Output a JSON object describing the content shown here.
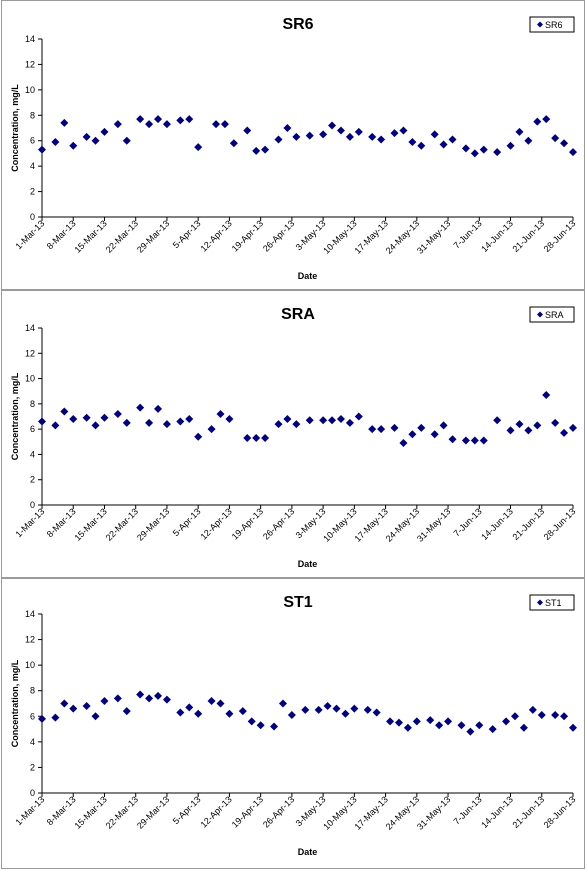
{
  "colors": {
    "marker": "#000080",
    "axis": "#000000",
    "border": "#9a9a9a"
  },
  "chart_data": [
    {
      "type": "scatter",
      "title": "SR6",
      "xlabel": "Date",
      "ylabel": "Concentration, mg/L",
      "legend": "SR6",
      "legend_position": "top-right",
      "ylim": [
        0,
        14
      ],
      "yticks": [
        "0",
        "2",
        "4",
        "6",
        "8",
        "10",
        "12",
        "14"
      ],
      "xlim": [
        "1-Mar-13",
        "28-Jun-13"
      ],
      "xticks": [
        "1-Mar-13",
        "8-Mar-13",
        "15-Mar-13",
        "22-Mar-13",
        "29-Mar-13",
        "5-Apr-13",
        "12-Apr-13",
        "19-Apr-13",
        "26-Apr-13",
        "3-May-13",
        "10-May-13",
        "17-May-13",
        "24-May-13",
        "31-May-13",
        "7-Jun-13",
        "14-Jun-13",
        "21-Jun-13",
        "28-Jun-13"
      ],
      "grid": false,
      "points": [
        {
          "x": "1-Mar-13",
          "y": 5.3
        },
        {
          "x": "4-Mar-13",
          "y": 5.9
        },
        {
          "x": "6-Mar-13",
          "y": 7.4
        },
        {
          "x": "8-Mar-13",
          "y": 5.6
        },
        {
          "x": "11-Mar-13",
          "y": 6.3
        },
        {
          "x": "13-Mar-13",
          "y": 6.0
        },
        {
          "x": "15-Mar-13",
          "y": 6.7
        },
        {
          "x": "18-Mar-13",
          "y": 7.3
        },
        {
          "x": "20-Mar-13",
          "y": 6.0
        },
        {
          "x": "23-Mar-13",
          "y": 7.7
        },
        {
          "x": "25-Mar-13",
          "y": 7.3
        },
        {
          "x": "27-Mar-13",
          "y": 7.7
        },
        {
          "x": "29-Mar-13",
          "y": 7.3
        },
        {
          "x": "1-Apr-13",
          "y": 7.6
        },
        {
          "x": "3-Apr-13",
          "y": 7.7
        },
        {
          "x": "5-Apr-13",
          "y": 5.5
        },
        {
          "x": "9-Apr-13",
          "y": 7.3
        },
        {
          "x": "11-Apr-13",
          "y": 7.3
        },
        {
          "x": "13-Apr-13",
          "y": 5.8
        },
        {
          "x": "16-Apr-13",
          "y": 6.8
        },
        {
          "x": "18-Apr-13",
          "y": 5.2
        },
        {
          "x": "20-Apr-13",
          "y": 5.3
        },
        {
          "x": "23-Apr-13",
          "y": 6.1
        },
        {
          "x": "25-Apr-13",
          "y": 7.0
        },
        {
          "x": "27-Apr-13",
          "y": 6.3
        },
        {
          "x": "30-Apr-13",
          "y": 6.4
        },
        {
          "x": "3-May-13",
          "y": 6.5
        },
        {
          "x": "5-May-13",
          "y": 7.2
        },
        {
          "x": "7-May-13",
          "y": 6.8
        },
        {
          "x": "9-May-13",
          "y": 6.3
        },
        {
          "x": "11-May-13",
          "y": 6.7
        },
        {
          "x": "14-May-13",
          "y": 6.3
        },
        {
          "x": "16-May-13",
          "y": 6.1
        },
        {
          "x": "19-May-13",
          "y": 6.6
        },
        {
          "x": "21-May-13",
          "y": 6.8
        },
        {
          "x": "23-May-13",
          "y": 5.9
        },
        {
          "x": "25-May-13",
          "y": 5.6
        },
        {
          "x": "28-May-13",
          "y": 6.5
        },
        {
          "x": "30-May-13",
          "y": 5.7
        },
        {
          "x": "1-Jun-13",
          "y": 6.1
        },
        {
          "x": "4-Jun-13",
          "y": 5.4
        },
        {
          "x": "6-Jun-13",
          "y": 5.0
        },
        {
          "x": "8-Jun-13",
          "y": 5.3
        },
        {
          "x": "11-Jun-13",
          "y": 5.1
        },
        {
          "x": "14-Jun-13",
          "y": 5.6
        },
        {
          "x": "16-Jun-13",
          "y": 6.7
        },
        {
          "x": "18-Jun-13",
          "y": 6.0
        },
        {
          "x": "20-Jun-13",
          "y": 7.5
        },
        {
          "x": "22-Jun-13",
          "y": 7.7
        },
        {
          "x": "24-Jun-13",
          "y": 6.2
        },
        {
          "x": "26-Jun-13",
          "y": 5.8
        },
        {
          "x": "28-Jun-13",
          "y": 5.1
        }
      ]
    },
    {
      "type": "scatter",
      "title": "SRA",
      "xlabel": "Date",
      "ylabel": "Concentration, mg/L",
      "legend": "SRA",
      "legend_position": "top-right",
      "ylim": [
        0,
        14
      ],
      "yticks": [
        "0",
        "2",
        "4",
        "6",
        "8",
        "10",
        "12",
        "14"
      ],
      "xlim": [
        "1-Mar-13",
        "28-Jun-13"
      ],
      "xticks": [
        "1-Mar-13",
        "8-Mar-13",
        "15-Mar-13",
        "22-Mar-13",
        "29-Mar-13",
        "5-Apr-13",
        "12-Apr-13",
        "19-Apr-13",
        "26-Apr-13",
        "3-May-13",
        "10-May-13",
        "17-May-13",
        "24-May-13",
        "31-May-13",
        "7-Jun-13",
        "14-Jun-13",
        "21-Jun-13",
        "28-Jun-13"
      ],
      "grid": false,
      "points": [
        {
          "x": "1-Mar-13",
          "y": 6.6
        },
        {
          "x": "4-Mar-13",
          "y": 6.3
        },
        {
          "x": "6-Mar-13",
          "y": 7.4
        },
        {
          "x": "8-Mar-13",
          "y": 6.8
        },
        {
          "x": "11-Mar-13",
          "y": 6.9
        },
        {
          "x": "13-Mar-13",
          "y": 6.3
        },
        {
          "x": "15-Mar-13",
          "y": 6.9
        },
        {
          "x": "18-Mar-13",
          "y": 7.2
        },
        {
          "x": "20-Mar-13",
          "y": 6.5
        },
        {
          "x": "23-Mar-13",
          "y": 7.7
        },
        {
          "x": "25-Mar-13",
          "y": 6.5
        },
        {
          "x": "27-Mar-13",
          "y": 7.6
        },
        {
          "x": "29-Mar-13",
          "y": 6.4
        },
        {
          "x": "1-Apr-13",
          "y": 6.6
        },
        {
          "x": "3-Apr-13",
          "y": 6.8
        },
        {
          "x": "5-Apr-13",
          "y": 5.4
        },
        {
          "x": "8-Apr-13",
          "y": 6.0
        },
        {
          "x": "10-Apr-13",
          "y": 7.2
        },
        {
          "x": "12-Apr-13",
          "y": 6.8
        },
        {
          "x": "16-Apr-13",
          "y": 5.3
        },
        {
          "x": "18-Apr-13",
          "y": 5.3
        },
        {
          "x": "20-Apr-13",
          "y": 5.3
        },
        {
          "x": "23-Apr-13",
          "y": 6.4
        },
        {
          "x": "25-Apr-13",
          "y": 6.8
        },
        {
          "x": "27-Apr-13",
          "y": 6.4
        },
        {
          "x": "30-Apr-13",
          "y": 6.7
        },
        {
          "x": "3-May-13",
          "y": 6.7
        },
        {
          "x": "5-May-13",
          "y": 6.7
        },
        {
          "x": "7-May-13",
          "y": 6.8
        },
        {
          "x": "9-May-13",
          "y": 6.5
        },
        {
          "x": "11-May-13",
          "y": 7.0
        },
        {
          "x": "14-May-13",
          "y": 6.0
        },
        {
          "x": "16-May-13",
          "y": 6.0
        },
        {
          "x": "19-May-13",
          "y": 6.1
        },
        {
          "x": "21-May-13",
          "y": 4.9
        },
        {
          "x": "23-May-13",
          "y": 5.6
        },
        {
          "x": "25-May-13",
          "y": 6.1
        },
        {
          "x": "28-May-13",
          "y": 5.6
        },
        {
          "x": "30-May-13",
          "y": 6.3
        },
        {
          "x": "1-Jun-13",
          "y": 5.2
        },
        {
          "x": "4-Jun-13",
          "y": 5.1
        },
        {
          "x": "6-Jun-13",
          "y": 5.1
        },
        {
          "x": "8-Jun-13",
          "y": 5.1
        },
        {
          "x": "11-Jun-13",
          "y": 6.7
        },
        {
          "x": "14-Jun-13",
          "y": 5.9
        },
        {
          "x": "16-Jun-13",
          "y": 6.4
        },
        {
          "x": "18-Jun-13",
          "y": 5.9
        },
        {
          "x": "20-Jun-13",
          "y": 6.3
        },
        {
          "x": "22-Jun-13",
          "y": 8.7
        },
        {
          "x": "24-Jun-13",
          "y": 6.5
        },
        {
          "x": "26-Jun-13",
          "y": 5.7
        },
        {
          "x": "28-Jun-13",
          "y": 6.1
        }
      ]
    },
    {
      "type": "scatter",
      "title": "ST1",
      "xlabel": "Date",
      "ylabel": "Concentration, mg/L",
      "legend": "ST1",
      "legend_position": "top-right",
      "ylim": [
        0,
        14
      ],
      "yticks": [
        "0",
        "2",
        "4",
        "6",
        "8",
        "10",
        "12",
        "14"
      ],
      "xlim": [
        "1-Mar-13",
        "28-Jun-13"
      ],
      "xticks": [
        "1-Mar-13",
        "8-Mar-13",
        "15-Mar-13",
        "22-Mar-13",
        "29-Mar-13",
        "5-Apr-13",
        "12-Apr-13",
        "19-Apr-13",
        "26-Apr-13",
        "3-May-13",
        "10-May-13",
        "17-May-13",
        "24-May-13",
        "31-May-13",
        "7-Jun-13",
        "14-Jun-13",
        "21-Jun-13",
        "28-Jun-13"
      ],
      "grid": false,
      "points": [
        {
          "x": "1-Mar-13",
          "y": 5.8
        },
        {
          "x": "4-Mar-13",
          "y": 5.9
        },
        {
          "x": "6-Mar-13",
          "y": 7.0
        },
        {
          "x": "8-Mar-13",
          "y": 6.6
        },
        {
          "x": "11-Mar-13",
          "y": 6.8
        },
        {
          "x": "13-Mar-13",
          "y": 6.0
        },
        {
          "x": "15-Mar-13",
          "y": 7.2
        },
        {
          "x": "18-Mar-13",
          "y": 7.4
        },
        {
          "x": "20-Mar-13",
          "y": 6.4
        },
        {
          "x": "23-Mar-13",
          "y": 7.7
        },
        {
          "x": "25-Mar-13",
          "y": 7.4
        },
        {
          "x": "27-Mar-13",
          "y": 7.6
        },
        {
          "x": "29-Mar-13",
          "y": 7.3
        },
        {
          "x": "1-Apr-13",
          "y": 6.3
        },
        {
          "x": "3-Apr-13",
          "y": 6.7
        },
        {
          "x": "5-Apr-13",
          "y": 6.2
        },
        {
          "x": "8-Apr-13",
          "y": 7.2
        },
        {
          "x": "10-Apr-13",
          "y": 7.0
        },
        {
          "x": "12-Apr-13",
          "y": 6.2
        },
        {
          "x": "15-Apr-13",
          "y": 6.4
        },
        {
          "x": "17-Apr-13",
          "y": 5.6
        },
        {
          "x": "19-Apr-13",
          "y": 5.3
        },
        {
          "x": "22-Apr-13",
          "y": 5.2
        },
        {
          "x": "24-Apr-13",
          "y": 7.0
        },
        {
          "x": "26-Apr-13",
          "y": 6.1
        },
        {
          "x": "29-Apr-13",
          "y": 6.5
        },
        {
          "x": "2-May-13",
          "y": 6.5
        },
        {
          "x": "4-May-13",
          "y": 6.8
        },
        {
          "x": "6-May-13",
          "y": 6.6
        },
        {
          "x": "8-May-13",
          "y": 6.2
        },
        {
          "x": "10-May-13",
          "y": 6.6
        },
        {
          "x": "13-May-13",
          "y": 6.5
        },
        {
          "x": "15-May-13",
          "y": 6.3
        },
        {
          "x": "18-May-13",
          "y": 5.6
        },
        {
          "x": "20-May-13",
          "y": 5.5
        },
        {
          "x": "22-May-13",
          "y": 5.1
        },
        {
          "x": "24-May-13",
          "y": 5.6
        },
        {
          "x": "27-May-13",
          "y": 5.7
        },
        {
          "x": "29-May-13",
          "y": 5.3
        },
        {
          "x": "31-May-13",
          "y": 5.6
        },
        {
          "x": "3-Jun-13",
          "y": 5.3
        },
        {
          "x": "5-Jun-13",
          "y": 4.8
        },
        {
          "x": "7-Jun-13",
          "y": 5.3
        },
        {
          "x": "10-Jun-13",
          "y": 5.0
        },
        {
          "x": "13-Jun-13",
          "y": 5.6
        },
        {
          "x": "15-Jun-13",
          "y": 6.0
        },
        {
          "x": "17-Jun-13",
          "y": 5.1
        },
        {
          "x": "19-Jun-13",
          "y": 6.5
        },
        {
          "x": "21-Jun-13",
          "y": 6.1
        },
        {
          "x": "24-Jun-13",
          "y": 6.1
        },
        {
          "x": "26-Jun-13",
          "y": 6.0
        },
        {
          "x": "28-Jun-13",
          "y": 5.1
        }
      ]
    }
  ]
}
